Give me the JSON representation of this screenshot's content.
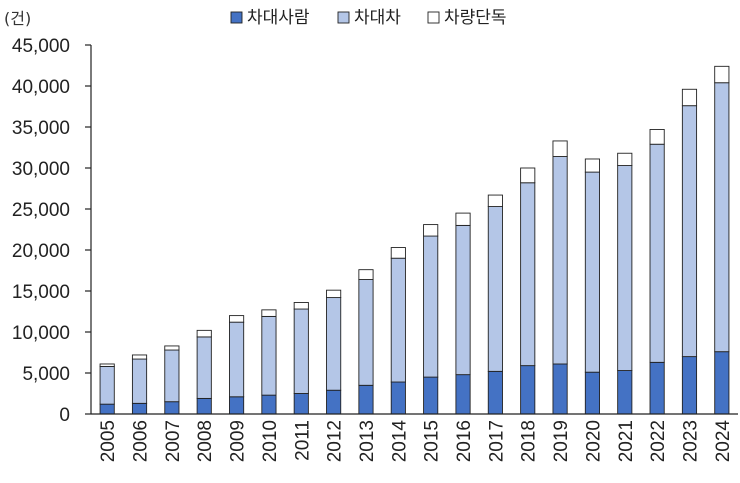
{
  "chart_data": {
    "type": "bar",
    "stacked": true,
    "unit_label": "(건)",
    "title": "",
    "xlabel": "",
    "ylabel": "",
    "categories": [
      "2005",
      "2006",
      "2007",
      "2008",
      "2009",
      "2010",
      "2011",
      "2012",
      "2013",
      "2014",
      "2015",
      "2016",
      "2017",
      "2018",
      "2019",
      "2020",
      "2021",
      "2022",
      "2023",
      "2024"
    ],
    "series": [
      {
        "name": "차대사람",
        "color": "#4472C4",
        "values": [
          1200,
          1300,
          1500,
          1900,
          2100,
          2300,
          2500,
          2900,
          3500,
          3900,
          4500,
          4800,
          5200,
          5900,
          6100,
          5100,
          5300,
          6300,
          7000,
          7600
        ]
      },
      {
        "name": "차대차",
        "color": "#B4C6E7",
        "values": [
          4600,
          5400,
          6300,
          7500,
          9100,
          9600,
          10300,
          11300,
          12900,
          15100,
          17200,
          18200,
          20100,
          22300,
          25300,
          24400,
          25000,
          26600,
          30600,
          32800
        ]
      },
      {
        "name": "차량단독",
        "color": "#FFFFFF",
        "values": [
          300,
          500,
          500,
          800,
          800,
          800,
          800,
          900,
          1200,
          1300,
          1400,
          1500,
          1400,
          1800,
          1900,
          1600,
          1500,
          1800,
          2000,
          2000
        ]
      }
    ],
    "ylim": [
      0,
      45000
    ],
    "yticks": [
      0,
      5000,
      10000,
      15000,
      20000,
      25000,
      30000,
      35000,
      40000,
      45000
    ],
    "ytick_labels": [
      "0",
      "5,000",
      "10,000",
      "15,000",
      "20,000",
      "25,000",
      "30,000",
      "35,000",
      "40,000",
      "45,000"
    ],
    "legend_position": "top-center",
    "grid": false,
    "bar_stroke": "#222222"
  }
}
